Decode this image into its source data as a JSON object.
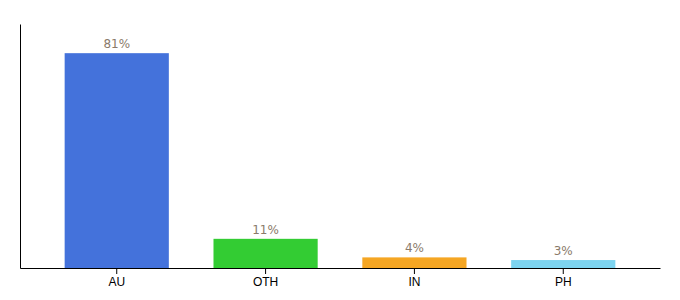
{
  "chart_data": {
    "type": "bar",
    "categories": [
      "AU",
      "OTH",
      "IN",
      "PH"
    ],
    "values": [
      81,
      11,
      4,
      3
    ],
    "value_labels": [
      "81%",
      "11%",
      "4%",
      "3%"
    ],
    "colors": [
      "#4472db",
      "#33cc33",
      "#f5a623",
      "#7dd4f0"
    ],
    "ylim": [
      0,
      92
    ],
    "data_labels": true,
    "tick_labels": "x",
    "grid": false
  }
}
